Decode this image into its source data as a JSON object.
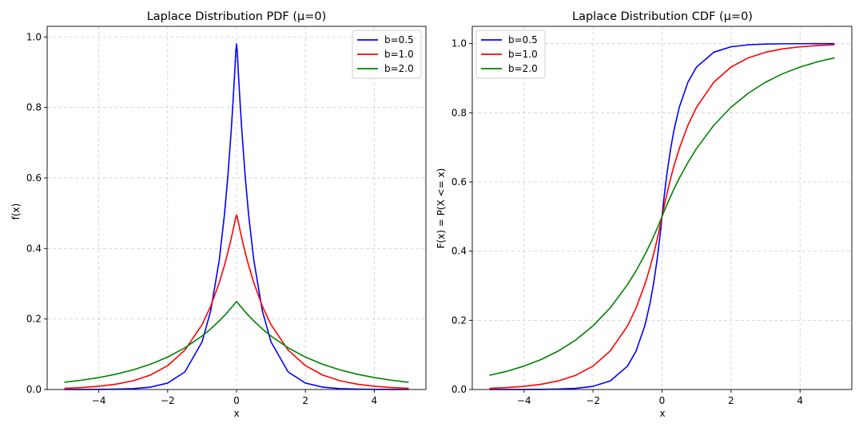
{
  "colors": {
    "blue": "#0000ff",
    "red": "#ff0000",
    "green": "#008000"
  },
  "chart_data": [
    {
      "type": "line",
      "title": "Laplace Distribution PDF (μ=0)",
      "xlabel": "x",
      "ylabel": "f(x)",
      "xlim": [
        -5.5,
        5.5
      ],
      "ylim": [
        0,
        1.03
      ],
      "xticks": [
        -4,
        -2,
        0,
        2,
        4
      ],
      "xtick_labels": [
        "−4",
        "−2",
        "0",
        "2",
        "4"
      ],
      "yticks": [
        0.0,
        0.2,
        0.4,
        0.6,
        0.8,
        1.0
      ],
      "ytick_labels": [
        "0.0",
        "0.2",
        "0.4",
        "0.6",
        "0.8",
        "1.0"
      ],
      "grid": true,
      "legend_position": "top-right",
      "x": [
        -5,
        -4.5,
        -4,
        -3.5,
        -3,
        -2.5,
        -2,
        -1.5,
        -1,
        -0.75,
        -0.5,
        -0.35,
        -0.25,
        -0.15,
        -0.1,
        -0.05,
        -0.02,
        0,
        0.02,
        0.05,
        0.1,
        0.15,
        0.25,
        0.35,
        0.5,
        0.75,
        1,
        1.5,
        2,
        2.5,
        3,
        3.5,
        4,
        4.5,
        5
      ],
      "series": [
        {
          "name": "b=0.5",
          "color": "#0000ff",
          "values": [
            0.0,
            0.00012,
            0.00034,
            0.00091,
            0.00248,
            0.00674,
            0.01832,
            0.04979,
            0.13534,
            0.22313,
            0.36788,
            0.49659,
            0.60653,
            0.74082,
            0.81873,
            0.90484,
            0.96079,
            0.98,
            0.96079,
            0.90484,
            0.81873,
            0.74082,
            0.60653,
            0.49659,
            0.36788,
            0.22313,
            0.13534,
            0.04979,
            0.01832,
            0.00674,
            0.00248,
            0.00091,
            0.00034,
            0.00012,
            0.0
          ]
        },
        {
          "name": "b=1.0",
          "color": "#ff0000",
          "values": [
            0.00337,
            0.00555,
            0.00916,
            0.0151,
            0.02489,
            0.04104,
            0.06767,
            0.11157,
            0.18394,
            0.23618,
            0.30327,
            0.35234,
            0.3894,
            0.43035,
            0.45242,
            0.47561,
            0.4901,
            0.495,
            0.4901,
            0.47561,
            0.45242,
            0.43035,
            0.3894,
            0.35234,
            0.30327,
            0.23618,
            0.18394,
            0.11157,
            0.06767,
            0.04104,
            0.02489,
            0.0151,
            0.00916,
            0.00555,
            0.00337
          ]
        },
        {
          "name": "b=2.0",
          "color": "#008000",
          "values": [
            0.02052,
            0.02635,
            0.03383,
            0.04344,
            0.05578,
            0.07163,
            0.09197,
            0.11809,
            0.15163,
            0.17183,
            0.1947,
            0.20985,
            0.22062,
            0.23194,
            0.23781,
            0.24383,
            0.24751,
            0.249,
            0.24751,
            0.24383,
            0.23781,
            0.23194,
            0.22062,
            0.20985,
            0.1947,
            0.17183,
            0.15163,
            0.11809,
            0.09197,
            0.07163,
            0.05578,
            0.04344,
            0.03383,
            0.02635,
            0.02052
          ]
        }
      ]
    },
    {
      "type": "line",
      "title": "Laplace Distribution CDF (μ=0)",
      "xlabel": "x",
      "ylabel": "F(x) = P(X <= x)",
      "xlim": [
        -5.5,
        5.5
      ],
      "ylim": [
        0,
        1.05
      ],
      "xticks": [
        -4,
        -2,
        0,
        2,
        4
      ],
      "xtick_labels": [
        "−4",
        "−2",
        "0",
        "2",
        "4"
      ],
      "yticks": [
        0.0,
        0.2,
        0.4,
        0.6,
        0.8,
        1.0
      ],
      "ytick_labels": [
        "0.0",
        "0.2",
        "0.4",
        "0.6",
        "0.8",
        "1.0"
      ],
      "grid": true,
      "legend_position": "top-left",
      "x": [
        -5,
        -4.5,
        -4,
        -3.5,
        -3,
        -2.5,
        -2,
        -1.5,
        -1,
        -0.75,
        -0.5,
        -0.35,
        -0.25,
        -0.15,
        -0.1,
        -0.05,
        0,
        0.05,
        0.1,
        0.15,
        0.25,
        0.35,
        0.5,
        0.75,
        1,
        1.5,
        2,
        2.5,
        3,
        3.5,
        4,
        4.5,
        5
      ],
      "series": [
        {
          "name": "b=0.5",
          "color": "#0000ff",
          "values": [
            2e-05,
            6e-05,
            0.00017,
            0.00046,
            0.00124,
            0.00337,
            0.00916,
            0.02489,
            0.06767,
            0.11157,
            0.18394,
            0.24829,
            0.30327,
            0.37041,
            0.40937,
            0.45242,
            0.5,
            0.54758,
            0.59063,
            0.62959,
            0.69673,
            0.75171,
            0.81606,
            0.88843,
            0.93233,
            0.97511,
            0.99084,
            0.99663,
            0.99876,
            0.99954,
            0.99983,
            0.99994,
            0.99998
          ]
        },
        {
          "name": "b=1.0",
          "color": "#ff0000",
          "values": [
            0.00337,
            0.00555,
            0.00916,
            0.0151,
            0.02489,
            0.04104,
            0.06767,
            0.11157,
            0.18394,
            0.23618,
            0.30327,
            0.35234,
            0.3894,
            0.43035,
            0.45242,
            0.47561,
            0.5,
            0.52439,
            0.54758,
            0.56965,
            0.6106,
            0.64766,
            0.69673,
            0.76382,
            0.81606,
            0.88843,
            0.93233,
            0.95896,
            0.97511,
            0.9849,
            0.99084,
            0.99445,
            0.99663
          ]
        },
        {
          "name": "b=2.0",
          "color": "#008000",
          "values": [
            0.04104,
            0.0527,
            0.06767,
            0.08688,
            0.11157,
            0.14325,
            0.18394,
            0.23618,
            0.30327,
            0.34366,
            0.3894,
            0.4197,
            0.44125,
            0.46387,
            0.47561,
            0.48765,
            0.5,
            0.51235,
            0.52439,
            0.53613,
            0.55875,
            0.5803,
            0.6106,
            0.65634,
            0.69673,
            0.76382,
            0.81606,
            0.85675,
            0.88843,
            0.91312,
            0.93233,
            0.9473,
            0.95896
          ]
        }
      ]
    }
  ]
}
